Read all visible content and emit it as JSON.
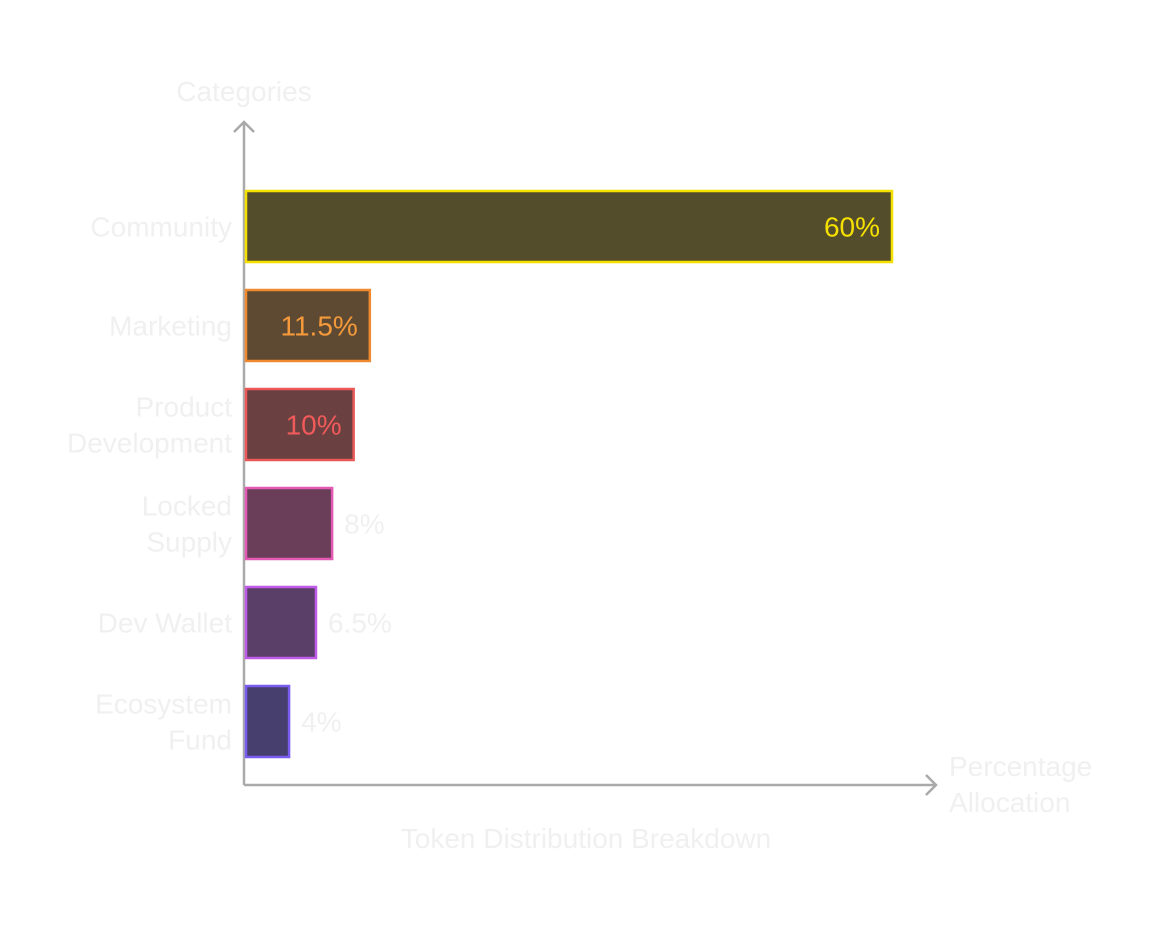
{
  "chart_data": {
    "type": "bar",
    "orientation": "horizontal",
    "title": "Token Distribution Breakdown",
    "xlabel": "Percentage Allocation",
    "ylabel": "Categories",
    "xlim": [
      0,
      60
    ],
    "grid": false,
    "categories": [
      {
        "label": "Community",
        "lines": [
          "Community"
        ],
        "value": 60,
        "value_label": "60%",
        "label_inside": true,
        "stroke": "#f5e000",
        "fill": "#534d2b",
        "label_color": "#f5e000"
      },
      {
        "label": "Marketing",
        "lines": [
          "Marketing"
        ],
        "value": 11.5,
        "value_label": "11.5%",
        "label_inside": true,
        "stroke": "#f08a30",
        "fill": "#5e4a33",
        "label_color": "#f59a3a"
      },
      {
        "label": "Product Development",
        "lines": [
          "Product",
          "Development"
        ],
        "value": 10,
        "value_label": "10%",
        "label_inside": true,
        "stroke": "#ea5858",
        "fill": "#6b4040",
        "label_color": "#f05a5a"
      },
      {
        "label": "Locked Supply",
        "lines": [
          "Locked",
          "Supply"
        ],
        "value": 8,
        "value_label": "8%",
        "label_inside": false,
        "stroke": "#e25ab4",
        "fill": "#6a3e58",
        "label_color": "#f0f0f0"
      },
      {
        "label": "Dev Wallet",
        "lines": [
          "Dev Wallet"
        ],
        "value": 6.5,
        "value_label": "6.5%",
        "label_inside": false,
        "stroke": "#c05ae8",
        "fill": "#5a3f68",
        "label_color": "#f0f0f0"
      },
      {
        "label": "Ecosystem Fund",
        "lines": [
          "Ecosystem",
          "Fund"
        ],
        "value": 4,
        "value_label": "4%",
        "label_inside": false,
        "stroke": "#7a5cf0",
        "fill": "#47406e",
        "label_color": "#f0f0f0"
      }
    ]
  },
  "colors": {
    "axis": "#aaaaaa",
    "text_light": "#f0f0f0"
  }
}
